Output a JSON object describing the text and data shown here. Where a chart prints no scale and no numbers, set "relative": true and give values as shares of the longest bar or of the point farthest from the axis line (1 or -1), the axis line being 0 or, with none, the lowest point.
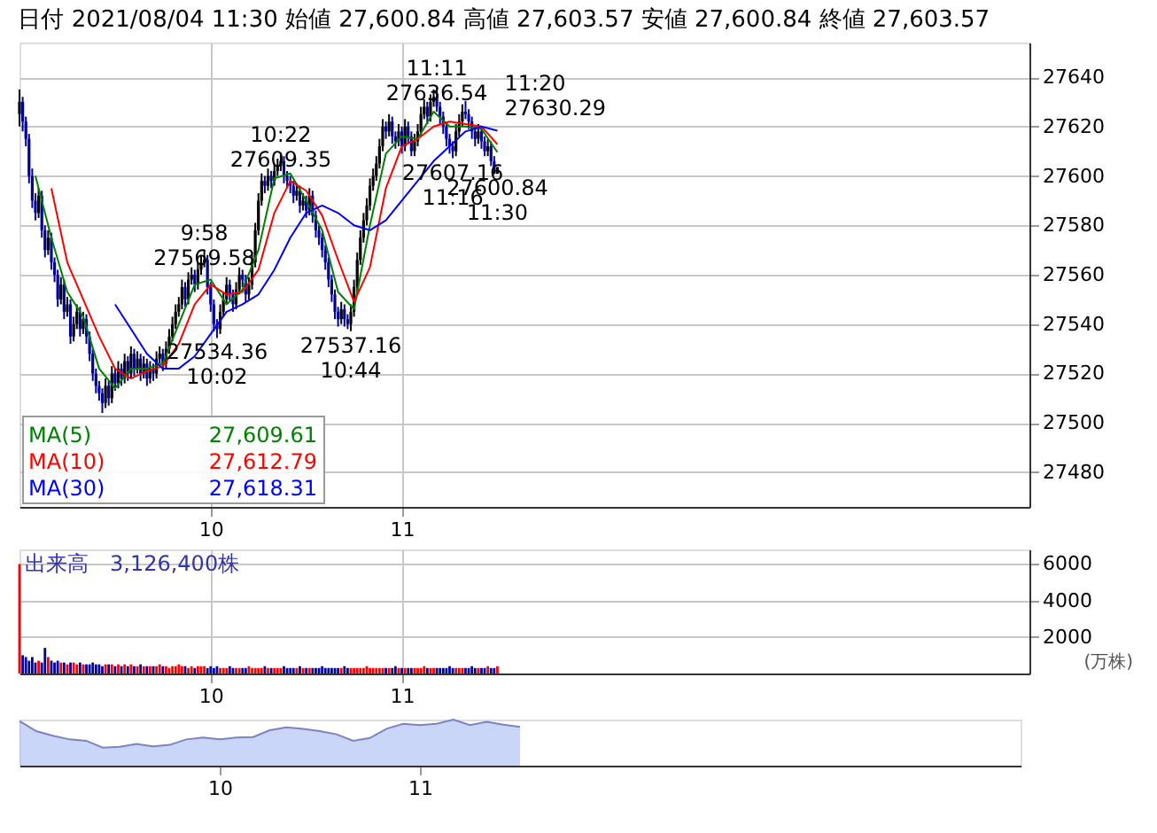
{
  "chart_data": [
    {
      "type": "candlestick",
      "title": "日付 2021/08/04 11:30 始値 27,600.84 高値 27,603.57 安値 27,600.84 終値 27,603.57",
      "x": [
        9.0,
        9.0167,
        9.0333,
        9.05,
        9.0667,
        9.0833,
        9.1,
        9.1167,
        9.1333,
        9.15,
        9.1667,
        9.1833,
        9.2,
        9.2167,
        9.2333,
        9.25,
        9.2667,
        9.2833,
        9.3,
        9.3167,
        9.3333,
        9.35,
        9.3667,
        9.3833,
        9.4,
        9.4167,
        9.4333,
        9.45,
        9.4667,
        9.4833,
        9.5,
        9.5167,
        9.5333,
        9.55,
        9.5667,
        9.5833,
        9.6,
        9.6167,
        9.6333,
        9.65,
        9.6667,
        9.6833,
        9.7,
        9.7167,
        9.7333,
        9.75,
        9.7667,
        9.7833,
        9.8,
        9.8167,
        9.8333,
        9.85,
        9.8667,
        9.8833,
        9.9,
        9.9167,
        9.9333,
        9.95,
        9.9667,
        9.9833,
        10.0,
        10.0167,
        10.0333,
        10.05,
        10.0667,
        10.0833,
        10.1,
        10.1167,
        10.1333,
        10.15,
        10.1667,
        10.1833,
        10.2,
        10.2167,
        10.2333,
        10.25,
        10.2667,
        10.2833,
        10.3,
        10.3167,
        10.3333,
        10.35,
        10.3667,
        10.3833,
        10.4,
        10.4167,
        10.4333,
        10.45,
        10.4667,
        10.4833,
        10.5,
        10.5167,
        10.5333,
        10.55,
        10.5667,
        10.5833,
        10.6,
        10.6167,
        10.6333,
        10.65,
        10.6667,
        10.6833,
        10.7,
        10.7167,
        10.7333,
        10.75,
        10.7667,
        10.7833,
        10.8,
        10.8167,
        10.8333,
        10.85,
        10.8667,
        10.8833,
        10.9,
        10.9167,
        10.9333,
        10.95,
        10.9667,
        10.9833,
        11.0,
        11.0167,
        11.0333,
        11.05,
        11.0667,
        11.0833,
        11.1,
        11.1167,
        11.1333,
        11.15,
        11.1667,
        11.1833,
        11.2,
        11.2167,
        11.2333,
        11.25,
        11.2667,
        11.2833,
        11.3,
        11.3167,
        11.3333,
        11.35,
        11.3667,
        11.3833,
        11.4,
        11.4167,
        11.4333,
        11.45,
        11.4667,
        11.4833,
        11.5
      ],
      "ohlc": [
        [
          27625,
          27635,
          27620,
          27630
        ],
        [
          27630,
          27632,
          27618,
          27622
        ],
        [
          27622,
          27624,
          27612,
          27615
        ],
        [
          27615,
          27617,
          27597,
          27600
        ],
        [
          27600,
          27603,
          27587,
          27590
        ],
        [
          27590,
          27593,
          27582,
          27585
        ],
        [
          27585,
          27595,
          27583,
          27592
        ],
        [
          27592,
          27594,
          27575,
          27578
        ],
        [
          27578,
          27580,
          27567,
          27570
        ],
        [
          27570,
          27578,
          27568,
          27575
        ],
        [
          27575,
          27577,
          27562,
          27565
        ],
        [
          27565,
          27567,
          27557,
          27560
        ],
        [
          27560,
          27562,
          27547,
          27550
        ],
        [
          27550,
          27559,
          27548,
          27556
        ],
        [
          27556,
          27558,
          27542,
          27545
        ],
        [
          27545,
          27551,
          27543,
          27548
        ],
        [
          27548,
          27550,
          27532,
          27535
        ],
        [
          27535,
          27543,
          27533,
          27540
        ],
        [
          27540,
          27548,
          27538,
          27545
        ],
        [
          27545,
          27547,
          27535,
          27538
        ],
        [
          27538,
          27545,
          27536,
          27542
        ],
        [
          27542,
          27544,
          27532,
          27535
        ],
        [
          27535,
          27537,
          27525,
          27528
        ],
        [
          27528,
          27530,
          27517,
          27520
        ],
        [
          27520,
          27522,
          27512,
          27515
        ],
        [
          27515,
          27517,
          27509,
          27512
        ],
        [
          27512,
          27514,
          27504,
          27508
        ],
        [
          27508,
          27518,
          27506,
          27515
        ],
        [
          27515,
          27517,
          27507,
          27510
        ],
        [
          27510,
          27523,
          27508,
          27520
        ],
        [
          27520,
          27522,
          27513,
          27516
        ],
        [
          27516,
          27525,
          27514,
          27522
        ],
        [
          27522,
          27524,
          27515,
          27518
        ],
        [
          27518,
          27528,
          27516,
          27525
        ],
        [
          27525,
          27527,
          27517,
          27520
        ],
        [
          27520,
          27531,
          27518,
          27528
        ],
        [
          27528,
          27530,
          27519,
          27522
        ],
        [
          27522,
          27529,
          27520,
          27526
        ],
        [
          27526,
          27528,
          27517,
          27520
        ],
        [
          27520,
          27527,
          27518,
          27524
        ],
        [
          27524,
          27526,
          27515,
          27518
        ],
        [
          27518,
          27525,
          27516,
          27522
        ],
        [
          27522,
          27524,
          27517,
          27520
        ],
        [
          27520,
          27529,
          27518,
          27526
        ],
        [
          27526,
          27531,
          27524,
          27528
        ],
        [
          27528,
          27530,
          27521,
          27524
        ],
        [
          27524,
          27533,
          27522,
          27530
        ],
        [
          27530,
          27538,
          27528,
          27535
        ],
        [
          27535,
          27543,
          27533,
          27540
        ],
        [
          27540,
          27548,
          27538,
          27545
        ],
        [
          27545,
          27551,
          27543,
          27548
        ],
        [
          27548,
          27558,
          27546,
          27555
        ],
        [
          27555,
          27557,
          27547,
          27550
        ],
        [
          27550,
          27561,
          27548,
          27558
        ],
        [
          27558,
          27563,
          27556,
          27560
        ],
        [
          27560,
          27562,
          27553,
          27556
        ],
        [
          27556,
          27565,
          27554,
          27562
        ],
        [
          27562,
          27568,
          27560,
          27565
        ],
        [
          27565,
          27569.58,
          27563,
          27566
        ],
        [
          27566,
          27568,
          27552,
          27555
        ],
        [
          27555,
          27557,
          27545,
          27548
        ],
        [
          27548,
          27550,
          27537,
          27540
        ],
        [
          27540,
          27542,
          27534.36,
          27538
        ],
        [
          27538,
          27548,
          27536,
          27545
        ],
        [
          27545,
          27553,
          27543,
          27550
        ],
        [
          27550,
          27559,
          27548,
          27556
        ],
        [
          27556,
          27558,
          27549,
          27552
        ],
        [
          27552,
          27554,
          27545,
          27548
        ],
        [
          27548,
          27557,
          27546,
          27554
        ],
        [
          27554,
          27563,
          27552,
          27560
        ],
        [
          27560,
          27562,
          27555,
          27558
        ],
        [
          27558,
          27560,
          27549,
          27552
        ],
        [
          27552,
          27559,
          27550,
          27556
        ],
        [
          27556,
          27568,
          27554,
          27565
        ],
        [
          27565,
          27581,
          27563,
          27578
        ],
        [
          27578,
          27593,
          27576,
          27590
        ],
        [
          27590,
          27601,
          27588,
          27598
        ],
        [
          27598,
          27600,
          27593,
          27596
        ],
        [
          27596,
          27603,
          27594,
          27600
        ],
        [
          27600,
          27602,
          27595,
          27598
        ],
        [
          27598,
          27605,
          27596,
          27602
        ],
        [
          27602,
          27607,
          27600,
          27604
        ],
        [
          27604,
          27609.35,
          27602,
          27606
        ],
        [
          27606,
          27608,
          27597,
          27600
        ],
        [
          27600,
          27602,
          27595,
          27598
        ],
        [
          27598,
          27600,
          27593,
          27596
        ],
        [
          27596,
          27598,
          27589,
          27592
        ],
        [
          27592,
          27597,
          27590,
          27594
        ],
        [
          27594,
          27596,
          27585,
          27588
        ],
        [
          27588,
          27593,
          27586,
          27590
        ],
        [
          27590,
          27592,
          27583,
          27586
        ],
        [
          27586,
          27595,
          27584,
          27592
        ],
        [
          27592,
          27594,
          27581,
          27584
        ],
        [
          27584,
          27586,
          27575,
          27578
        ],
        [
          27578,
          27580,
          27572,
          27575
        ],
        [
          27575,
          27577,
          27567,
          27570
        ],
        [
          27570,
          27572,
          27562,
          27565
        ],
        [
          27565,
          27567,
          27555,
          27558
        ],
        [
          27558,
          27560,
          27549,
          27552
        ],
        [
          27552,
          27554,
          27542,
          27545
        ],
        [
          27545,
          27547,
          27539,
          27542
        ],
        [
          27542,
          27549,
          27540,
          27546
        ],
        [
          27546,
          27548,
          27539,
          27542
        ],
        [
          27542,
          27544,
          27538,
          27540
        ],
        [
          27540,
          27548,
          27537.16,
          27545
        ],
        [
          27545,
          27558,
          27543,
          27555
        ],
        [
          27555,
          27569,
          27553,
          27566
        ],
        [
          27566,
          27578,
          27564,
          27575
        ],
        [
          27575,
          27585,
          27573,
          27582
        ],
        [
          27582,
          27591,
          27580,
          27588
        ],
        [
          27588,
          27599,
          27586,
          27596
        ],
        [
          27596,
          27603,
          27594,
          27600
        ],
        [
          27600,
          27608,
          27598,
          27605
        ],
        [
          27605,
          27615,
          27603,
          27612
        ],
        [
          27612,
          27623,
          27610,
          27620
        ],
        [
          27620,
          27622,
          27615,
          27618
        ],
        [
          27618,
          27625,
          27616,
          27622
        ],
        [
          27622,
          27624,
          27613,
          27616
        ],
        [
          27616,
          27618,
          27611,
          27614
        ],
        [
          27614,
          27621,
          27612,
          27618
        ],
        [
          27618,
          27620,
          27609,
          27612
        ],
        [
          27612,
          27623,
          27610,
          27620
        ],
        [
          27620,
          27622,
          27613,
          27616
        ],
        [
          27616,
          27618,
          27608,
          27610
        ],
        [
          27610,
          27617,
          27608,
          27614
        ],
        [
          27614,
          27621,
          27612,
          27618
        ],
        [
          27618,
          27628,
          27616,
          27625
        ],
        [
          27625,
          27631,
          27623,
          27628
        ],
        [
          27628,
          27630,
          27621,
          27624
        ],
        [
          27624,
          27633,
          27622,
          27630
        ],
        [
          27630,
          27635,
          27628,
          27632
        ],
        [
          27632,
          27636.54,
          27626,
          27628
        ],
        [
          27628,
          27630,
          27621,
          27624
        ],
        [
          27624,
          27626,
          27617,
          27620
        ],
        [
          27620,
          27622,
          27612,
          27615
        ],
        [
          27615,
          27617,
          27609,
          27612
        ],
        [
          27612,
          27614,
          27607.16,
          27610
        ],
        [
          27610,
          27621,
          27608,
          27618
        ],
        [
          27618,
          27625,
          27616,
          27622
        ],
        [
          27622,
          27629,
          27620,
          27626
        ],
        [
          27626,
          27630.29,
          27623,
          27625
        ],
        [
          27625,
          27627,
          27619,
          27622
        ],
        [
          27622,
          27624,
          27615,
          27618
        ],
        [
          27618,
          27620,
          27612,
          27615
        ],
        [
          27615,
          27621,
          27613,
          27618
        ],
        [
          27618,
          27620,
          27611,
          27614
        ],
        [
          27614,
          27616,
          27608,
          27610
        ],
        [
          27610,
          27615,
          27608,
          27612
        ],
        [
          27612,
          27614,
          27604,
          27606
        ],
        [
          27606,
          27608,
          27600.84,
          27600.84
        ],
        [
          27600.84,
          27603.57,
          27600.84,
          27603.57
        ]
      ],
      "colors": [
        "#000000",
        "#000099",
        "#000099",
        "#000099",
        "#000099",
        "#000099",
        "#000000",
        "#000099",
        "#000099",
        "#000000",
        "#000099",
        "#000099",
        "#000099",
        "#000000",
        "#000099",
        "#000000",
        "#000099",
        "#000000",
        "#000000",
        "#000099",
        "#000000",
        "#000099",
        "#000099",
        "#000099",
        "#000099",
        "#000099",
        "#000099",
        "#000000",
        "#000099",
        "#000000",
        "#000099",
        "#000000",
        "#000099",
        "#000000",
        "#000099",
        "#000000",
        "#000099",
        "#000000",
        "#000099",
        "#000000",
        "#000099",
        "#000000",
        "#000099",
        "#000000",
        "#000000",
        "#000099",
        "#000000",
        "#000000",
        "#000000",
        "#000000",
        "#000000",
        "#000000",
        "#000099",
        "#000000",
        "#000000",
        "#000099",
        "#000000",
        "#000000",
        "#000000",
        "#000099",
        "#000099",
        "#000099",
        "#000099",
        "#000000",
        "#000000",
        "#000000",
        "#000099",
        "#000099",
        "#000000",
        "#000000",
        "#000099",
        "#000099",
        "#000000",
        "#000000",
        "#000000",
        "#000000",
        "#000000",
        "#000099",
        "#000000",
        "#000099",
        "#000000",
        "#000000",
        "#000000",
        "#000099",
        "#000099",
        "#000099",
        "#000099",
        "#000000",
        "#000099",
        "#000000",
        "#000099",
        "#000000",
        "#000099",
        "#000099",
        "#000099",
        "#000099",
        "#000099",
        "#000099",
        "#000099",
        "#000099",
        "#000099",
        "#000000",
        "#000099",
        "#000099",
        "#000000",
        "#000000",
        "#000000",
        "#000000",
        "#000000",
        "#000000",
        "#000000",
        "#000000",
        "#000000",
        "#000000",
        "#000000",
        "#000099",
        "#000000",
        "#000099",
        "#000099",
        "#000000",
        "#000099",
        "#000000",
        "#000099",
        "#000099",
        "#000000",
        "#000000",
        "#000000",
        "#000000",
        "#000099",
        "#000000",
        "#000000",
        "#000099",
        "#000099",
        "#000099",
        "#000099",
        "#000099",
        "#000099",
        "#000000",
        "#000000",
        "#000000",
        "#000099",
        "#000099",
        "#000099",
        "#000099",
        "#000000",
        "#000099",
        "#000099",
        "#000000",
        "#000099",
        "#000099",
        "#000000"
      ],
      "series": [
        {
          "name": "MA(5)",
          "type": "line",
          "color": "#008000",
          "x": [
            9.0833,
            9.1667,
            9.25,
            9.3333,
            9.4167,
            9.5,
            9.5833,
            9.6667,
            9.75,
            9.8333,
            9.9167,
            10.0,
            10.0833,
            10.1667,
            10.25,
            10.3333,
            10.4167,
            10.5,
            10.5833,
            10.6667,
            10.75,
            10.8333,
            10.9167,
            11.0,
            11.0833,
            11.1667,
            11.25,
            11.3333,
            11.4167,
            11.5
          ],
          "values": [
            27600,
            27575,
            27553,
            27543,
            27522,
            27514,
            27522,
            27522,
            27524,
            27540,
            27556,
            27558,
            27548,
            27554,
            27570,
            27599,
            27601,
            27590,
            27578,
            27553,
            27546,
            27580,
            27609,
            27616,
            27615,
            27626,
            27620,
            27620,
            27619,
            27609.61
          ]
        },
        {
          "name": "MA(10)",
          "type": "line",
          "color": "#ff0000",
          "x": [
            9.1667,
            9.25,
            9.3333,
            9.4167,
            9.5,
            9.5833,
            9.6667,
            9.75,
            9.8333,
            9.9167,
            10.0,
            10.0833,
            10.1667,
            10.25,
            10.3333,
            10.4167,
            10.5,
            10.5833,
            10.6667,
            10.75,
            10.8333,
            10.9167,
            11.0,
            11.0833,
            11.1667,
            11.25,
            11.3333,
            11.4167,
            11.5
          ],
          "values": [
            27595,
            27565,
            27550,
            27535,
            27522,
            27518,
            27521,
            27523,
            27532,
            27548,
            27556,
            27552,
            27553,
            27562,
            27585,
            27598,
            27594,
            27584,
            27566,
            27549,
            27563,
            27595,
            27612,
            27615,
            27620,
            27622,
            27621,
            27620,
            27612.79
          ]
        },
        {
          "name": "MA(30)",
          "type": "line",
          "color": "#0000ff",
          "x": [
            9.5,
            9.5833,
            9.6667,
            9.75,
            9.8333,
            9.9167,
            10.0,
            10.0833,
            10.1667,
            10.25,
            10.3333,
            10.4167,
            10.5,
            10.5833,
            10.6667,
            10.75,
            10.8333,
            10.9167,
            11.0,
            11.0833,
            11.1667,
            11.25,
            11.3333,
            11.4167,
            11.5
          ],
          "values": [
            27548,
            27538,
            27528,
            27522,
            27522,
            27527,
            27536,
            27545,
            27548,
            27552,
            27562,
            27575,
            27585,
            27588,
            27585,
            27580,
            27578,
            27582,
            27590,
            27598,
            27606,
            27612,
            27618,
            27620,
            27618.31
          ]
        }
      ],
      "annotations": [
        "27,609.61",
        "27,612.79",
        "27,618.31",
        {
          "text": "9:58\n27569.58",
          "x": 9.9667,
          "y": 27569.58
        },
        {
          "text": "27534.36\n10:02",
          "x": 10.0333,
          "y": 27534.36
        },
        {
          "text": "10:22\n27609.35",
          "x": 10.3667,
          "y": 27609.35
        },
        {
          "text": "27537.16\n10:44",
          "x": 10.7333,
          "y": 27537.16
        },
        {
          "text": "11:11\n27636.54",
          "x": 11.1833,
          "y": 27636.54
        },
        {
          "text": "11:20\n27630.29",
          "x": 11.3333,
          "y": 27630.29
        },
        {
          "text": "27607.16\n11:16",
          "x": 11.2667,
          "y": 27607.16
        },
        {
          "text": "27600.84\n11:30",
          "x": 11.5,
          "y": 27600.84
        }
      ],
      "xlim": [
        9,
        14.2833
      ],
      "xticks": [
        10,
        11
      ],
      "ylim": [
        27466,
        27654
      ],
      "yticks": [
        27480,
        27500,
        27520,
        27540,
        27560,
        27580,
        27600,
        27620,
        27640
      ],
      "grid": true,
      "legend": "bottom left"
    },
    {
      "type": "bar",
      "title": "出来高　3,126,400株",
      "ylabel": "(万株)",
      "x": [
        9.0,
        9.0167,
        9.0333,
        9.05,
        9.0667,
        9.0833,
        9.1,
        9.1167,
        9.1333,
        9.15,
        9.1667,
        9.1833,
        9.2,
        9.2167,
        9.2333,
        9.25,
        9.2667,
        9.2833,
        9.3,
        9.3167,
        9.3333,
        9.35,
        9.3667,
        9.3833,
        9.4,
        9.4167,
        9.4333,
        9.45,
        9.4667,
        9.4833,
        9.5,
        9.5167,
        9.5333,
        9.55,
        9.5667,
        9.5833,
        9.6,
        9.6167,
        9.6333,
        9.65,
        9.6667,
        9.6833,
        9.7,
        9.7167,
        9.7333,
        9.75,
        9.7667,
        9.7833,
        9.8,
        9.8167,
        9.8333,
        9.85,
        9.8667,
        9.8833,
        9.9,
        9.9167,
        9.9333,
        9.95,
        9.9667,
        9.9833,
        10.0,
        10.0167,
        10.0333,
        10.05,
        10.0667,
        10.0833,
        10.1,
        10.1167,
        10.1333,
        10.15,
        10.1667,
        10.1833,
        10.2,
        10.2167,
        10.2333,
        10.25,
        10.2667,
        10.2833,
        10.3,
        10.3167,
        10.3333,
        10.35,
        10.3667,
        10.3833,
        10.4,
        10.4167,
        10.4333,
        10.45,
        10.4667,
        10.4833,
        10.5,
        10.5167,
        10.5333,
        10.55,
        10.5667,
        10.5833,
        10.6,
        10.6167,
        10.6333,
        10.65,
        10.6667,
        10.6833,
        10.7,
        10.7167,
        10.7333,
        10.75,
        10.7667,
        10.7833,
        10.8,
        10.8167,
        10.8333,
        10.85,
        10.8667,
        10.8833,
        10.9,
        10.9167,
        10.9333,
        10.95,
        10.9667,
        10.9833,
        11.0,
        11.0167,
        11.0333,
        11.05,
        11.0667,
        11.0833,
        11.1,
        11.1167,
        11.1333,
        11.15,
        11.1667,
        11.1833,
        11.2,
        11.2167,
        11.2333,
        11.25,
        11.2667,
        11.2833,
        11.3,
        11.3167,
        11.3333,
        11.35,
        11.3667,
        11.3833,
        11.4,
        11.4167,
        11.4333,
        11.45,
        11.4667,
        11.4833,
        11.5
      ],
      "values": [
        6000,
        1000,
        900,
        700,
        900,
        600,
        700,
        600,
        1400,
        900,
        700,
        600,
        700,
        600,
        600,
        500,
        600,
        600,
        500,
        600,
        500,
        500,
        500,
        600,
        500,
        500,
        400,
        500,
        500,
        500,
        400,
        500,
        400,
        500,
        400,
        500,
        400,
        400,
        500,
        400,
        400,
        400,
        400,
        400,
        500,
        400,
        400,
        300,
        400,
        400,
        500,
        400,
        400,
        300,
        400,
        300,
        400,
        400,
        400,
        300,
        400,
        300,
        400,
        300,
        300,
        300,
        400,
        300,
        300,
        300,
        300,
        300,
        400,
        300,
        300,
        300,
        300,
        400,
        300,
        300,
        300,
        300,
        300,
        400,
        300,
        300,
        300,
        300,
        400,
        300,
        300,
        300,
        300,
        300,
        300,
        400,
        300,
        300,
        300,
        300,
        300,
        300,
        400,
        300,
        300,
        300,
        300,
        300,
        300,
        400,
        300,
        300,
        300,
        300,
        300,
        300,
        300,
        300,
        400,
        300,
        300,
        300,
        300,
        300,
        300,
        300,
        300,
        400,
        300,
        300,
        300,
        300,
        300,
        300,
        300,
        400,
        300,
        300,
        300,
        300,
        300,
        300,
        400,
        300,
        300,
        300,
        300,
        400,
        300,
        300,
        400
      ],
      "colors": [
        "#ff0000",
        "#000099",
        "#000099",
        "#000099",
        "#000099",
        "#000099",
        "#ff0000",
        "#000099",
        "#000099",
        "#ff0000",
        "#000099",
        "#000099",
        "#000099",
        "#ff0000",
        "#000099",
        "#ff0000",
        "#000099",
        "#ff0000",
        "#ff0000",
        "#000099",
        "#ff0000",
        "#000099",
        "#000099",
        "#000099",
        "#000099",
        "#000099",
        "#000099",
        "#ff0000",
        "#000099",
        "#ff0000",
        "#000099",
        "#ff0000",
        "#000099",
        "#ff0000",
        "#000099",
        "#ff0000",
        "#000099",
        "#ff0000",
        "#000099",
        "#ff0000",
        "#000099",
        "#ff0000",
        "#000099",
        "#ff0000",
        "#ff0000",
        "#000099",
        "#ff0000",
        "#ff0000",
        "#ff0000",
        "#ff0000",
        "#ff0000",
        "#ff0000",
        "#000099",
        "#ff0000",
        "#ff0000",
        "#000099",
        "#ff0000",
        "#ff0000",
        "#ff0000",
        "#000099",
        "#000099",
        "#000099",
        "#000099",
        "#ff0000",
        "#ff0000",
        "#ff0000",
        "#000099",
        "#000099",
        "#ff0000",
        "#ff0000",
        "#000099",
        "#000099",
        "#ff0000",
        "#ff0000",
        "#ff0000",
        "#ff0000",
        "#ff0000",
        "#000099",
        "#ff0000",
        "#000099",
        "#ff0000",
        "#ff0000",
        "#ff0000",
        "#000099",
        "#000099",
        "#000099",
        "#000099",
        "#ff0000",
        "#000099",
        "#ff0000",
        "#000099",
        "#ff0000",
        "#000099",
        "#000099",
        "#000099",
        "#000099",
        "#000099",
        "#000099",
        "#000099",
        "#000099",
        "#000099",
        "#ff0000",
        "#000099",
        "#000099",
        "#ff0000",
        "#ff0000",
        "#ff0000",
        "#ff0000",
        "#ff0000",
        "#ff0000",
        "#ff0000",
        "#ff0000",
        "#ff0000",
        "#ff0000",
        "#ff0000",
        "#000099",
        "#ff0000",
        "#000099",
        "#000099",
        "#ff0000",
        "#000099",
        "#ff0000",
        "#000099",
        "#000099",
        "#ff0000",
        "#ff0000",
        "#ff0000",
        "#ff0000",
        "#000099",
        "#ff0000",
        "#ff0000",
        "#000099",
        "#000099",
        "#000099",
        "#000099",
        "#000099",
        "#000099",
        "#ff0000",
        "#ff0000",
        "#ff0000",
        "#000099",
        "#000099",
        "#000099",
        "#000099",
        "#ff0000",
        "#000099",
        "#000099",
        "#ff0000",
        "#000099",
        "#000099",
        "#ff0000"
      ],
      "xlim": [
        9,
        14.2833
      ],
      "xticks": [
        10,
        11
      ],
      "ylim": [
        0,
        6800
      ],
      "yticks": [
        2000,
        4000,
        6000
      ],
      "grid": true
    },
    {
      "type": "area",
      "relative": true,
      "tick_labels": "x",
      "x": [
        9.0,
        9.0833,
        9.1667,
        9.25,
        9.3333,
        9.4167,
        9.5,
        9.5833,
        9.6667,
        9.75,
        9.8333,
        9.9167,
        10.0,
        10.0833,
        10.1667,
        10.25,
        10.3333,
        10.4167,
        10.5,
        10.5833,
        10.6667,
        10.75,
        10.8333,
        10.9167,
        11.0,
        11.0833,
        11.1667,
        11.25,
        11.3333,
        11.4167,
        11.5
      ],
      "series": [
        {
          "color": "#b4c4f4",
          "values": [
            0.97,
            0.75,
            0.65,
            0.57,
            0.54,
            0.39,
            0.41,
            0.47,
            0.42,
            0.45,
            0.57,
            0.61,
            0.57,
            0.61,
            0.62,
            0.77,
            0.83,
            0.8,
            0.75,
            0.68,
            0.54,
            0.6,
            0.8,
            0.91,
            0.88,
            0.91,
            1.0,
            0.88,
            0.95,
            0.89,
            0.84
          ]
        }
      ],
      "xlim": [
        9,
        14
      ],
      "xticks": [
        10,
        11
      ]
    }
  ]
}
